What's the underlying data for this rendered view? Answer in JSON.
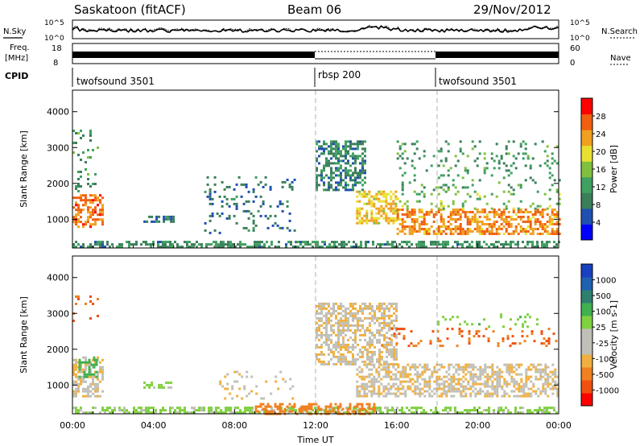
{
  "header": {
    "title": "Saskatoon (fitACF)",
    "beam": "Beam 06",
    "date": "29/Nov/2012"
  },
  "top_panels": {
    "nsky": {
      "left_label": "N.Sky",
      "right_label": "N.Search",
      "left_ticks": [
        "10^5",
        "10^0"
      ],
      "right_ticks": [
        "10^5",
        "10^0"
      ]
    },
    "freq": {
      "left_label_1": "Freq.",
      "left_label_2": "[MHz]",
      "left_ticks": [
        "18",
        "8"
      ],
      "right_label": "Nave",
      "right_ticks": [
        "60",
        "0"
      ]
    },
    "cpid": {
      "label": "CPID",
      "segments": [
        {
          "name": "twofsound 3501",
          "start": 0,
          "end": 12
        },
        {
          "name": "rbsp 200",
          "start": 12,
          "end": 18
        },
        {
          "name": "twofsound 3501",
          "start": 18,
          "end": 24
        }
      ]
    }
  },
  "colors": {
    "power": [
      "#0000ff",
      "#2050b0",
      "#3a7f5a",
      "#40a060",
      "#80c040",
      "#e8e030",
      "#f0a020",
      "#f06010",
      "#ff0000"
    ],
    "velocity": [
      "#ff0000",
      "#f05010",
      "#f08020",
      "#f0b040",
      "#c0c0b8",
      "#c0c0b8",
      "#80d040",
      "#40b050",
      "#2f7f6f",
      "#2060b0",
      "#1840c0"
    ]
  },
  "chart_data": [
    {
      "type": "heatmap",
      "name": "power",
      "ylabel": "Slant Range [km]",
      "yticks": [
        1000,
        2000,
        3000,
        4000
      ],
      "ylim": [
        200,
        4600
      ],
      "colorbar_label": "Power [dB]",
      "colorbar_ticks": [
        "4",
        "8",
        "12",
        "16",
        "20",
        "24",
        "28"
      ],
      "colorbar_range": [
        0,
        30
      ],
      "vlines": [
        12,
        18
      ],
      "regions": [
        {
          "t": [
            0.0,
            1.5
          ],
          "r": [
            800,
            1700
          ],
          "v": 25
        },
        {
          "t": [
            0.0,
            1.3
          ],
          "r": [
            1700,
            3500
          ],
          "v": 10,
          "sparse": true
        },
        {
          "t": [
            3.5,
            5.0
          ],
          "r": [
            900,
            1100
          ],
          "v": 6
        },
        {
          "t": [
            6.5,
            11.0
          ],
          "r": [
            600,
            2200
          ],
          "v": 6,
          "sparse": true
        },
        {
          "t": [
            0.0,
            24.0
          ],
          "r": [
            200,
            400
          ],
          "v": 9
        },
        {
          "t": [
            12.0,
            14.5
          ],
          "r": [
            1800,
            3200
          ],
          "v": 8
        },
        {
          "t": [
            14.0,
            16.0
          ],
          "r": [
            900,
            1800
          ],
          "v": 20
        },
        {
          "t": [
            16.0,
            24.0
          ],
          "r": [
            600,
            1300
          ],
          "v": 24
        },
        {
          "t": [
            16.0,
            24.0
          ],
          "r": [
            1300,
            1800
          ],
          "v": 14,
          "sparse": true
        },
        {
          "t": [
            16.0,
            24.0
          ],
          "r": [
            1800,
            3200
          ],
          "v": 10,
          "sparse": true
        }
      ]
    },
    {
      "type": "heatmap",
      "name": "velocity",
      "xlabel": "Time UT",
      "ylabel": "Slant Range [km]",
      "yticks": [
        1000,
        2000,
        3000,
        4000
      ],
      "ylim": [
        200,
        4600
      ],
      "xticks": [
        "00:00",
        "04:00",
        "08:00",
        "12:00",
        "16:00",
        "20:00",
        "00:00"
      ],
      "xlim": [
        0,
        24
      ],
      "colorbar_label": "Velocity [m s-1]",
      "colorbar_ticks": [
        "-1000",
        "-500",
        "-100",
        "-25",
        "25",
        "100",
        "500",
        "1000"
      ],
      "vlines": [
        12,
        18
      ],
      "regions": [
        {
          "t": [
            0.0,
            1.5
          ],
          "r": [
            700,
            1800
          ],
          "v": 0
        },
        {
          "t": [
            0.3,
            1.2
          ],
          "r": [
            1200,
            1800
          ],
          "v": 300
        },
        {
          "t": [
            0.0,
            1.3
          ],
          "r": [
            2800,
            3500
          ],
          "v": -300,
          "sparse": true
        },
        {
          "t": [
            3.5,
            5.0
          ],
          "r": [
            900,
            1100
          ],
          "v": 100
        },
        {
          "t": [
            7.0,
            11.0
          ],
          "r": [
            600,
            1400
          ],
          "v": 0,
          "sparse": true
        },
        {
          "t": [
            0.0,
            24.0
          ],
          "r": [
            200,
            400
          ],
          "v": 100
        },
        {
          "t": [
            9.0,
            15.0
          ],
          "r": [
            200,
            500
          ],
          "v": -150
        },
        {
          "t": [
            12.0,
            16.0
          ],
          "r": [
            1600,
            3300
          ],
          "v": 0
        },
        {
          "t": [
            14.0,
            24.0
          ],
          "r": [
            700,
            1600
          ],
          "v": 0
        },
        {
          "t": [
            15.0,
            24.0
          ],
          "r": [
            2100,
            2600
          ],
          "v": -300,
          "sparse": true
        },
        {
          "t": [
            18.0,
            23.0
          ],
          "r": [
            2600,
            3000
          ],
          "v": 150,
          "sparse": true
        }
      ]
    }
  ]
}
